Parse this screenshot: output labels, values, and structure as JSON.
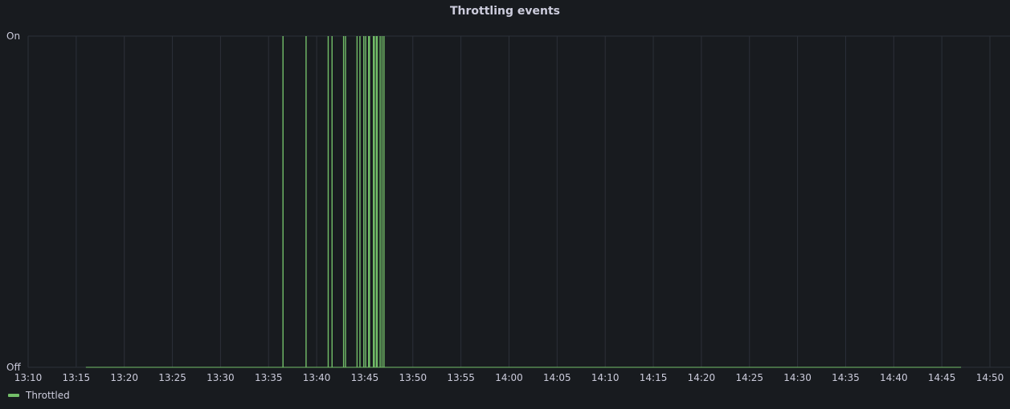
{
  "panel": {
    "title": "Throttling events"
  },
  "chart_data": {
    "type": "line",
    "title": "Throttling events",
    "xlabel": "",
    "ylabel": "",
    "x_ticks": [
      "13:10",
      "13:15",
      "13:20",
      "13:25",
      "13:30",
      "13:35",
      "13:40",
      "13:45",
      "13:50",
      "13:55",
      "14:00",
      "14:05",
      "14:10",
      "14:15",
      "14:20",
      "14:25",
      "14:30",
      "14:35",
      "14:40",
      "14:45",
      "14:50"
    ],
    "y_ticks": [
      "Off",
      "On"
    ],
    "ylim": [
      0,
      1
    ],
    "xlim": [
      "13:10",
      "14:50"
    ],
    "grid": true,
    "legend_position": "bottom-left",
    "series": [
      {
        "name": "Throttled",
        "color": "#73bf69",
        "data_start": "13:16",
        "data_end": "14:47",
        "on_events": [
          "13:36.5",
          "13:38.9",
          "13:41.2",
          "13:41.6",
          "13:42.8",
          "13:43.0",
          "13:44.2",
          "13:44.5",
          "13:44.9",
          "13:45.1",
          "13:45.4",
          "13:45.5",
          "13:45.9",
          "13:46.0",
          "13:46.2",
          "13:46.3",
          "13:46.6",
          "13:46.8",
          "13:47.0"
        ]
      }
    ]
  },
  "legend": {
    "items": [
      {
        "label": "Throttled",
        "color": "#73bf69"
      }
    ]
  }
}
